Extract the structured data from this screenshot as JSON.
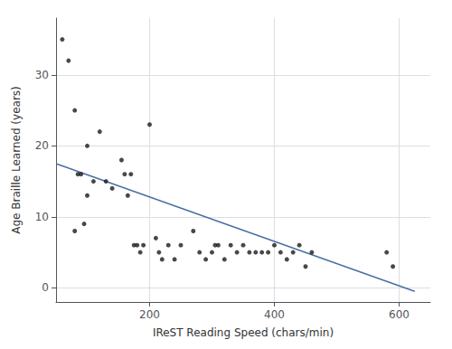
{
  "chart_data": {
    "type": "scatter",
    "xlabel": "IReST Reading Speed (chars/min)",
    "ylabel": "Age Braille Learned (years)",
    "xlim": [
      50,
      650
    ],
    "ylim": [
      -2,
      38
    ],
    "xticks": [
      200,
      400,
      600
    ],
    "yticks": [
      0,
      10,
      20,
      30
    ],
    "grid": true,
    "series": [
      {
        "type": "scatter",
        "color": "#1a1a1a",
        "x": [
          60,
          70,
          80,
          80,
          85,
          90,
          95,
          100,
          100,
          110,
          120,
          130,
          140,
          155,
          160,
          165,
          170,
          175,
          180,
          185,
          190,
          200,
          210,
          215,
          220,
          230,
          240,
          250,
          270,
          280,
          290,
          300,
          305,
          310,
          320,
          330,
          340,
          350,
          360,
          370,
          380,
          390,
          400,
          410,
          420,
          430,
          440,
          450,
          460,
          580,
          590
        ],
        "values": [
          35,
          32,
          25,
          8,
          16,
          16,
          9,
          20,
          13,
          15,
          22,
          15,
          14,
          18,
          16,
          13,
          16,
          6,
          6,
          5,
          6,
          23,
          7,
          5,
          4,
          6,
          4,
          6,
          8,
          5,
          4,
          5,
          6,
          6,
          4,
          6,
          5,
          6,
          5,
          5,
          5,
          5,
          6,
          5,
          4,
          5,
          6,
          3,
          5,
          5,
          3
        ]
      },
      {
        "type": "line",
        "color": "#4a6fa5",
        "x": [
          50,
          625
        ],
        "values": [
          17.5,
          -0.5
        ]
      }
    ]
  }
}
